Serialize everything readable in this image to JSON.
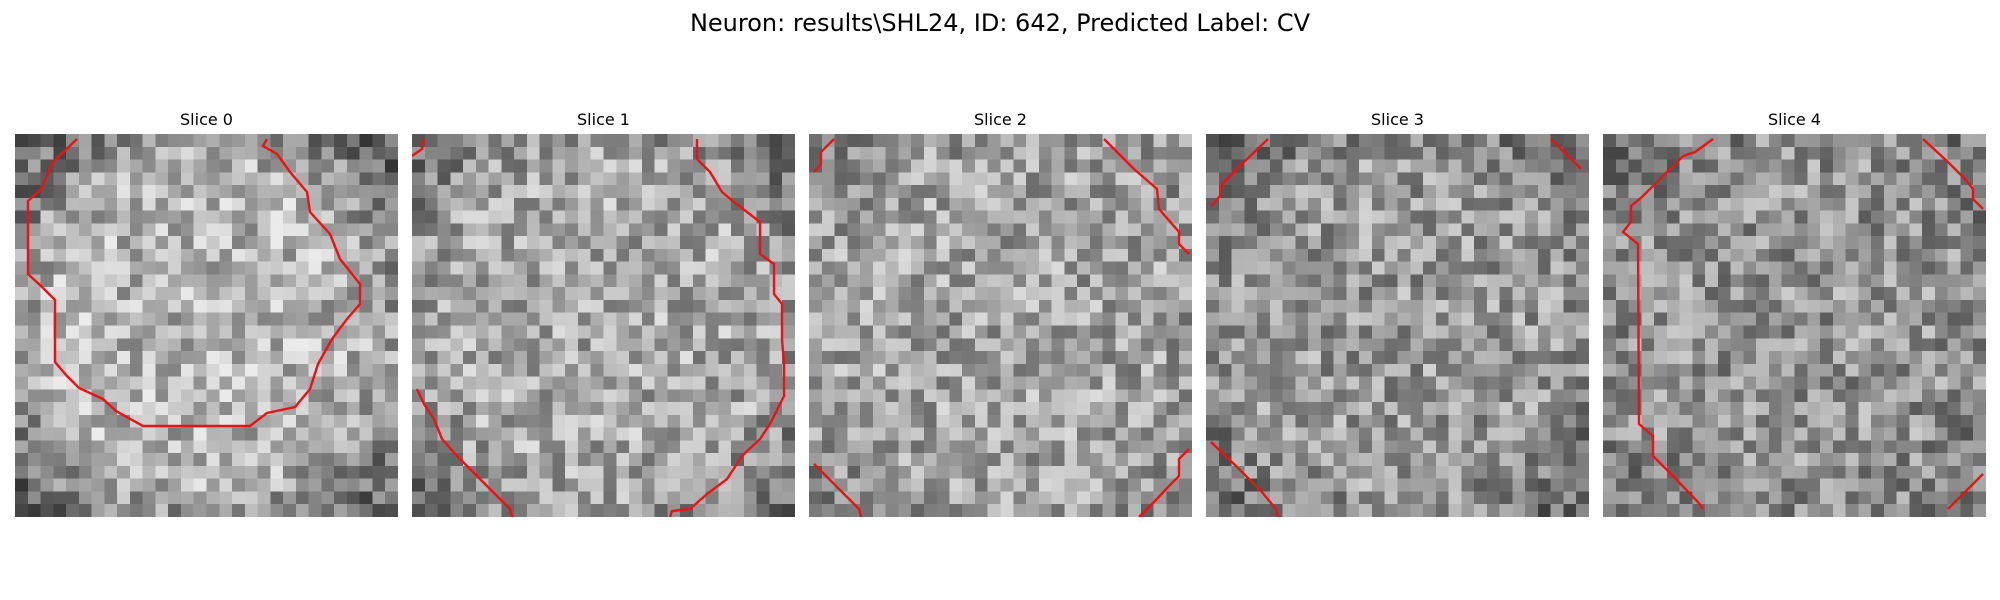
{
  "title": "Neuron: results\\SHL24, ID: 642, Predicted Label: CV",
  "contour_color": "#ee1111",
  "grid_size": 30,
  "slices": [
    {
      "label": "Slice 0",
      "base": 0.7,
      "rim": 0.36,
      "seed": 11
    },
    {
      "label": "Slice 1",
      "base": 0.66,
      "rim": 0.45,
      "seed": 23
    },
    {
      "label": "Slice 2",
      "base": 0.64,
      "rim": 0.55,
      "seed": 37
    },
    {
      "label": "Slice 3",
      "base": 0.6,
      "rim": 0.42,
      "seed": 53
    },
    {
      "label": "Slice 4",
      "base": 0.58,
      "rim": 0.46,
      "seed": 71
    }
  ]
}
